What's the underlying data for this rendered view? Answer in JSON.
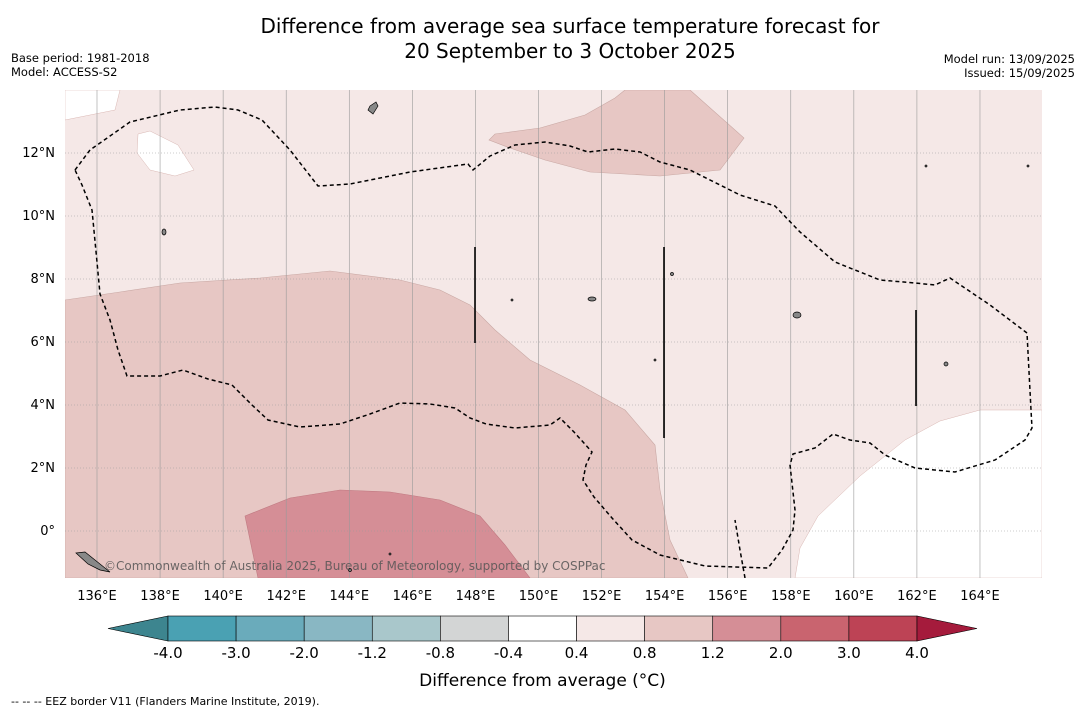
{
  "title_line1": "Difference from average sea surface temperature forecast for",
  "title_line2": "20 September to 3 October 2025",
  "base_period": "Base period: 1981-2018",
  "model": "Model: ACCESS-S2",
  "model_run": "Model run: 13/09/2025",
  "issued": "Issued: 15/09/2025",
  "copyright": "©Commonwealth of Australia 2025, Bureau of Meteorology, supported by COSPPac",
  "footer_legend": "--  --  -- EEZ border V11 (Flanders Marine Institute, 2019).",
  "colorbar": {
    "label": "Difference from average (°C)",
    "ticks": [
      "-4.0",
      "-3.0",
      "-2.0",
      "-1.2",
      "-0.8",
      "-0.4",
      "0.4",
      "0.8",
      "1.2",
      "2.0",
      "3.0",
      "4.0"
    ],
    "colors": [
      "#4aa1b3",
      "#6aabbb",
      "#89b7c3",
      "#a9c7cb",
      "#d3d5d5",
      "#ffffff",
      "#f5e8e7",
      "#e7c7c4",
      "#d58e96",
      "#c9646f",
      "#bd4355"
    ],
    "under_color": "#3d858f",
    "over_color": "#a51b3c"
  },
  "axes": {
    "lon_labels": [
      "136°E",
      "138°E",
      "140°E",
      "142°E",
      "144°E",
      "146°E",
      "148°E",
      "150°E",
      "152°E",
      "154°E",
      "156°E",
      "158°E",
      "160°E",
      "162°E",
      "164°E"
    ],
    "lat_labels": [
      "12°N",
      "10°N",
      "8°N",
      "6°N",
      "4°N",
      "2°N",
      "0°"
    ]
  }
}
